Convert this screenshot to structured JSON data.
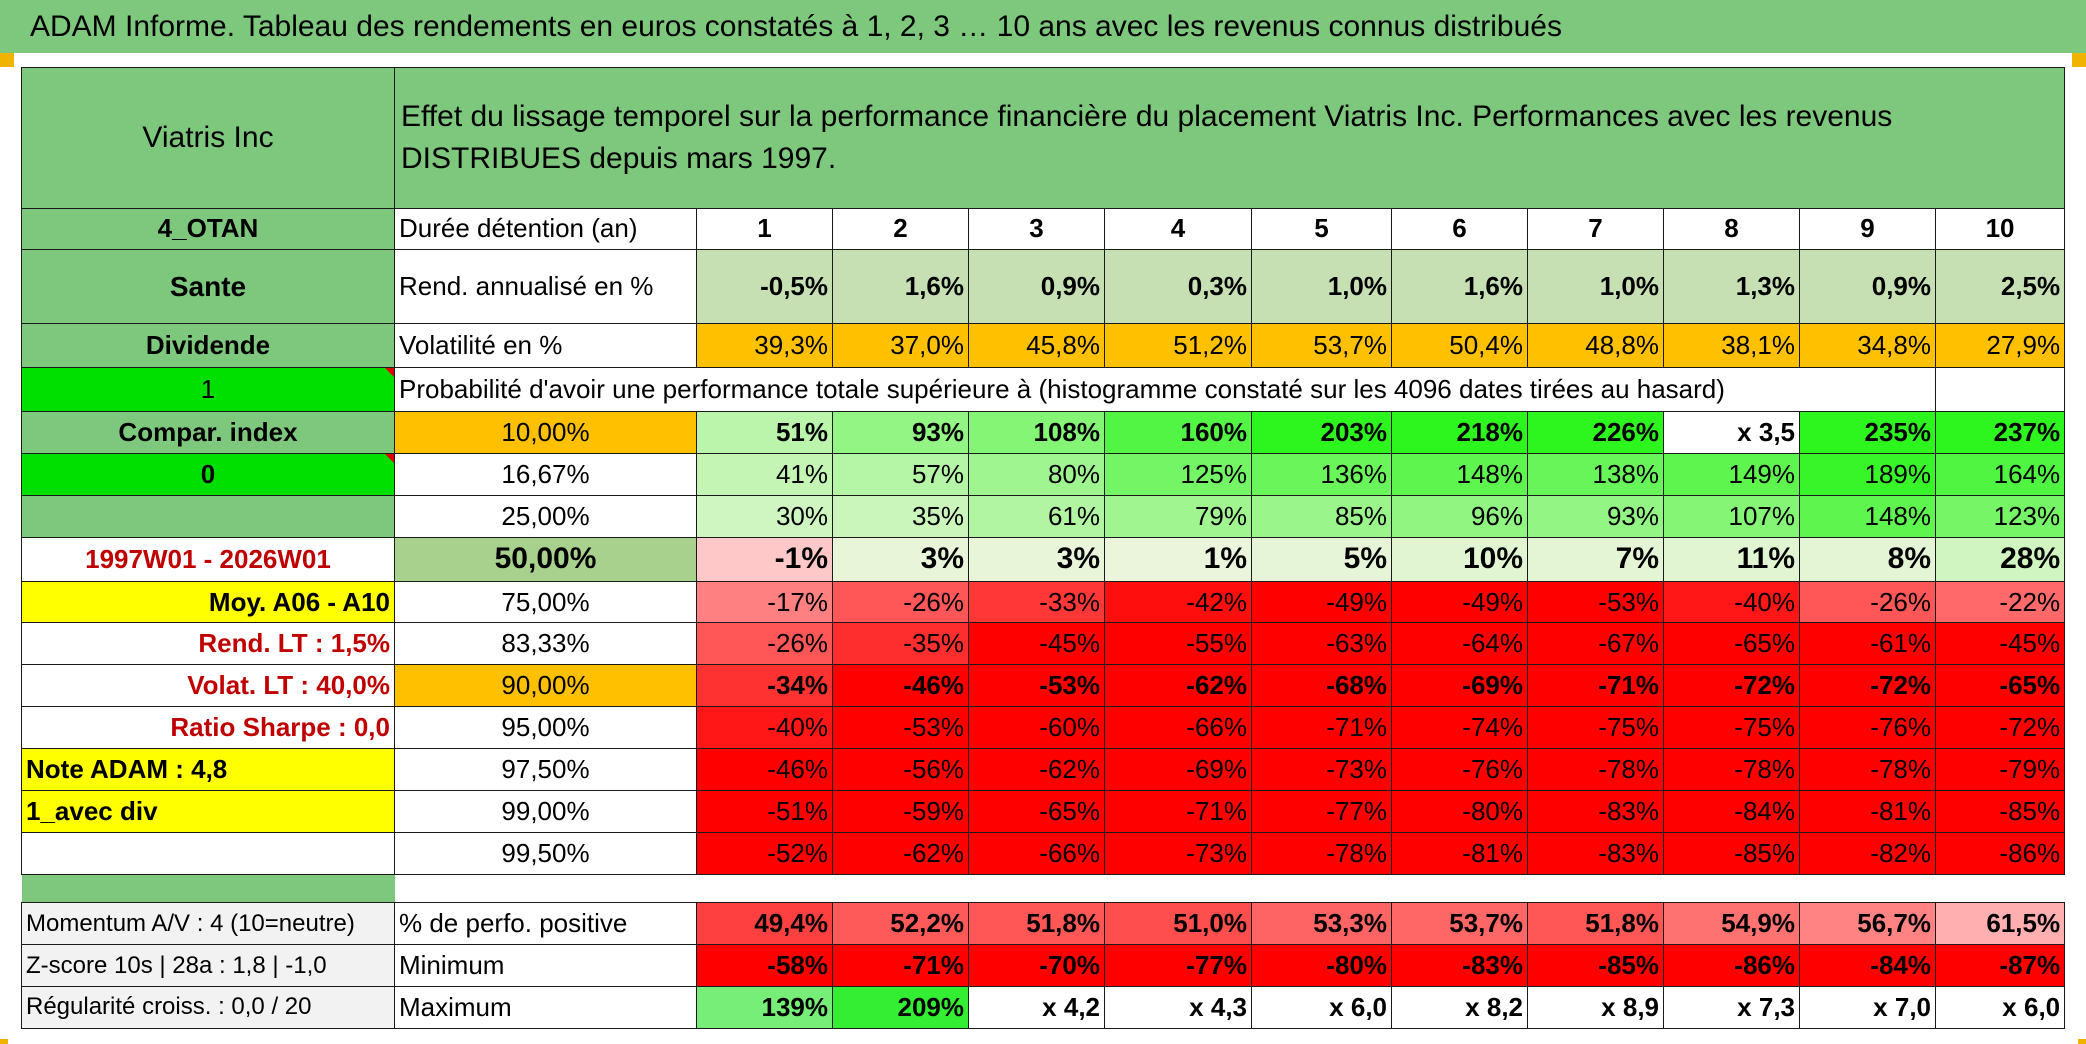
{
  "title": "ADAM Informe. Tableau des rendements en euros constatés à 1, 2, 3 … 10 ans avec les revenus connus distribués",
  "header": {
    "name": "Viatris Inc",
    "description": "Effet du lissage temporel sur la performance financière du placement Viatris Inc. Performances avec les revenus DISTRIBUES depuis mars 1997."
  },
  "side": {
    "code": "4_OTAN",
    "sector": "Sante",
    "type": "Dividende",
    "flag1": "1",
    "compar": "Compar. index",
    "flag0": "0",
    "period": "1997W01 - 2026W01",
    "moy": "Moy. A06 - A10",
    "rend_lt": "Rend. LT :   1,5%",
    "volat_lt": "Volat. LT :   40,0%",
    "sharpe": "Ratio Sharpe :    0,0",
    "note": "Note ADAM : 4,8",
    "avec_div": "1_avec div"
  },
  "row_labels": {
    "duree": "Durée détention (an)",
    "rend": "Rend. annualisé en %",
    "volat": "Volatilité en %",
    "proba": "Probabilité d'avoir une performance totale supérieure à (histogramme constaté sur les 4096 dates tirées au hasard)"
  },
  "years": [
    "1",
    "2",
    "3",
    "4",
    "5",
    "6",
    "7",
    "8",
    "9",
    "10"
  ],
  "rend": [
    "-0,5%",
    "1,6%",
    "0,9%",
    "0,3%",
    "1,0%",
    "1,6%",
    "1,0%",
    "1,3%",
    "0,9%",
    "2,5%"
  ],
  "volat": [
    "39,3%",
    "37,0%",
    "45,8%",
    "51,2%",
    "53,7%",
    "50,4%",
    "48,8%",
    "38,1%",
    "34,8%",
    "27,9%"
  ],
  "quantiles": [
    {
      "label": "10,00%",
      "values": [
        "51%",
        "93%",
        "108%",
        "160%",
        "203%",
        "218%",
        "226%",
        "x 3,5",
        "235%",
        "237%"
      ]
    },
    {
      "label": "16,67%",
      "values": [
        "41%",
        "57%",
        "80%",
        "125%",
        "136%",
        "148%",
        "138%",
        "149%",
        "189%",
        "164%"
      ]
    },
    {
      "label": "25,00%",
      "values": [
        "30%",
        "35%",
        "61%",
        "79%",
        "85%",
        "96%",
        "93%",
        "107%",
        "148%",
        "123%"
      ]
    },
    {
      "label": "50,00%",
      "values": [
        "-1%",
        "3%",
        "3%",
        "1%",
        "5%",
        "10%",
        "7%",
        "11%",
        "8%",
        "28%"
      ]
    },
    {
      "label": "75,00%",
      "values": [
        "-17%",
        "-26%",
        "-33%",
        "-42%",
        "-49%",
        "-49%",
        "-53%",
        "-40%",
        "-26%",
        "-22%"
      ]
    },
    {
      "label": "83,33%",
      "values": [
        "-26%",
        "-35%",
        "-45%",
        "-55%",
        "-63%",
        "-64%",
        "-67%",
        "-65%",
        "-61%",
        "-45%"
      ]
    },
    {
      "label": "90,00%",
      "values": [
        "-34%",
        "-46%",
        "-53%",
        "-62%",
        "-68%",
        "-69%",
        "-71%",
        "-72%",
        "-72%",
        "-65%"
      ]
    },
    {
      "label": "95,00%",
      "values": [
        "-40%",
        "-53%",
        "-60%",
        "-66%",
        "-71%",
        "-74%",
        "-75%",
        "-75%",
        "-76%",
        "-72%"
      ]
    },
    {
      "label": "97,50%",
      "values": [
        "-46%",
        "-56%",
        "-62%",
        "-69%",
        "-73%",
        "-76%",
        "-78%",
        "-78%",
        "-78%",
        "-79%"
      ]
    },
    {
      "label": "99,00%",
      "values": [
        "-51%",
        "-59%",
        "-65%",
        "-71%",
        "-77%",
        "-80%",
        "-83%",
        "-84%",
        "-81%",
        "-85%"
      ]
    },
    {
      "label": "99,50%",
      "values": [
        "-52%",
        "-62%",
        "-66%",
        "-73%",
        "-78%",
        "-81%",
        "-83%",
        "-85%",
        "-82%",
        "-86%"
      ]
    }
  ],
  "stats": [
    {
      "side": "Momentum A/V : 4 (10=neutre)",
      "label": "% de perfo. positive",
      "values": [
        "49,4%",
        "52,2%",
        "51,8%",
        "51,0%",
        "53,3%",
        "53,7%",
        "51,8%",
        "54,9%",
        "56,7%",
        "61,5%"
      ]
    },
    {
      "side": "Z-score 10s | 28a : 1,8 | -1,0",
      "label": "Minimum",
      "values": [
        "-58%",
        "-71%",
        "-70%",
        "-77%",
        "-80%",
        "-83%",
        "-85%",
        "-86%",
        "-84%",
        "-87%"
      ]
    },
    {
      "side": "Régularité croiss. : 0,0 / 20",
      "label": "Maximum",
      "values": [
        "139%",
        "209%",
        "x 4,2",
        "x 4,3",
        "x 6,0",
        "x 8,2",
        "x 8,9",
        "x 7,3",
        "x 7,0",
        "x 6,0"
      ]
    }
  ],
  "colors": {
    "header_green": "#7ec87e",
    "bright_green": "#00e000",
    "orange": "#ffc000",
    "yellow": "#ffff00",
    "red": "#ff0000"
  }
}
